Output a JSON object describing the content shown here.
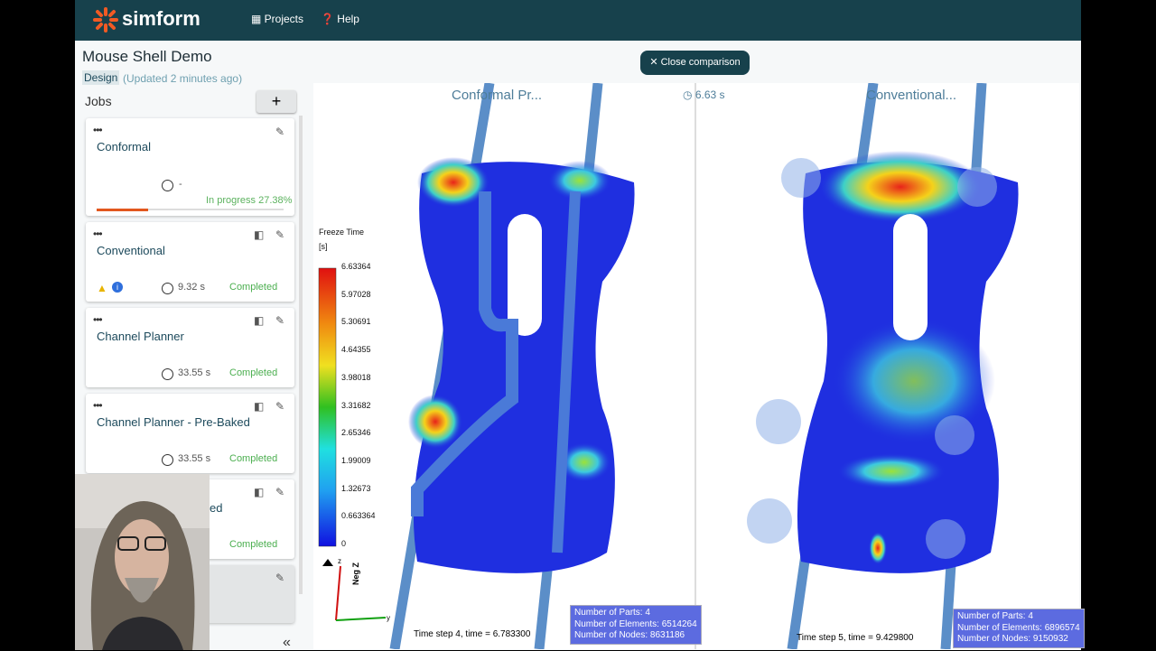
{
  "header": {
    "brand": "simform",
    "nav": [
      "Projects",
      "Help"
    ]
  },
  "project": {
    "title": "Mouse Shell Demo",
    "tag": "Design",
    "updated": "(Updated 2 minutes ago)"
  },
  "close_button": "Close comparison",
  "jobs": {
    "title": "Jobs",
    "items": [
      {
        "name": "Conformal",
        "time": "-",
        "status": "In progress 27.38%"
      },
      {
        "name": "Conventional",
        "time": "9.32 s",
        "status": "Completed"
      },
      {
        "name": "Channel Planner",
        "time": "33.55 s",
        "status": "Completed"
      },
      {
        "name": "Channel Planner - Pre-Baked",
        "time": "33.55 s",
        "status": "Completed"
      },
      {
        "name": "ed",
        "status": "Completed"
      }
    ]
  },
  "viewer": {
    "left_title": "Conformal Pr...",
    "right_title": "Conventional...",
    "time": "6.63 s",
    "legend": {
      "title": "Freeze Time",
      "unit": "[s]",
      "labels": [
        "6.63364",
        "5.97028",
        "5.30691",
        "4.64355",
        "3.98018",
        "3.31682",
        "2.65346",
        "1.99009",
        "1.32673",
        "0.663364",
        "0"
      ]
    },
    "axes": [
      "Neg Z",
      "z",
      "y"
    ],
    "left_info": [
      "Number of Parts: 4",
      "Number of Elements: 6514264",
      "Number of Nodes: 8631186"
    ],
    "right_info": [
      "Number of Parts: 4",
      "Number of Elements: 6896574",
      "Number of Nodes: 9150932"
    ],
    "left_step": "Time step 4, time = 6.783300",
    "right_step": "Time step 5, time = 9.429800"
  }
}
